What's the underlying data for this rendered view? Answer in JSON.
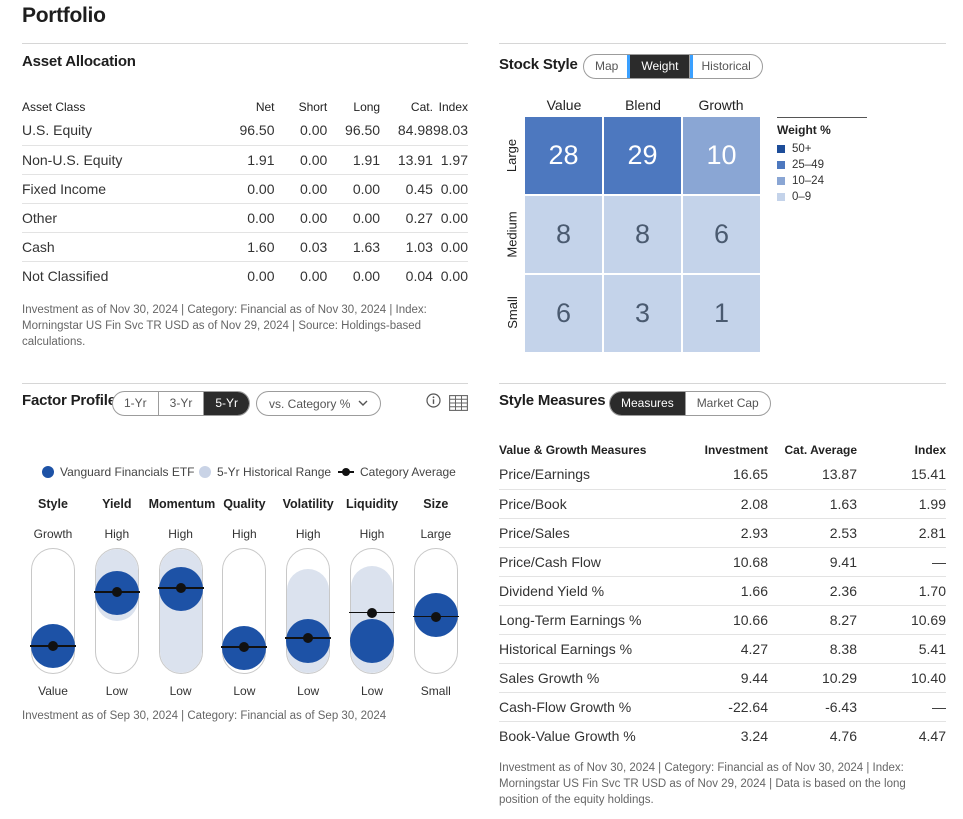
{
  "page": {
    "title": "Portfolio"
  },
  "asset_allocation": {
    "title": "Asset Allocation",
    "columns": [
      "Asset Class",
      "Net",
      "Short",
      "Long",
      "Cat.",
      "Index"
    ],
    "rows": [
      [
        "U.S. Equity",
        "96.50",
        "0.00",
        "96.50",
        "84.98",
        "98.03"
      ],
      [
        "Non-U.S. Equity",
        "1.91",
        "0.00",
        "1.91",
        "13.91",
        "1.97"
      ],
      [
        "Fixed Income",
        "0.00",
        "0.00",
        "0.00",
        "0.45",
        "0.00"
      ],
      [
        "Other",
        "0.00",
        "0.00",
        "0.00",
        "0.27",
        "0.00"
      ],
      [
        "Cash",
        "1.60",
        "0.03",
        "1.63",
        "1.03",
        "0.00"
      ],
      [
        "Not Classified",
        "0.00",
        "0.00",
        "0.00",
        "0.04",
        "0.00"
      ]
    ],
    "footnote": "Investment as of Nov 30, 2024 | Category: Financial as of Nov 30, 2024 | Index: Morningstar US Fin Svc TR USD as of Nov 29, 2024 | Source: Holdings-based calculations."
  },
  "stock_style": {
    "title": "Stock Style",
    "tabs": [
      "Map",
      "Weight",
      "Historical"
    ],
    "active_tab": "Weight",
    "columns": [
      "Value",
      "Blend",
      "Growth"
    ],
    "rows": [
      "Large",
      "Medium",
      "Small"
    ],
    "grid": [
      [
        "28",
        "29",
        "10"
      ],
      [
        "8",
        "8",
        "6"
      ],
      [
        "6",
        "3",
        "1"
      ]
    ],
    "legend_title": "Weight %",
    "legend": [
      {
        "label": "50+",
        "color": "#1d4d99"
      },
      {
        "label": "25–49",
        "color": "#4d78bf"
      },
      {
        "label": "10–24",
        "color": "#8aa6d4"
      },
      {
        "label": "0–9",
        "color": "#c4d3ea"
      }
    ]
  },
  "factor_profile": {
    "title": "Factor Profile",
    "periods": [
      "1-Yr",
      "3-Yr",
      "5-Yr"
    ],
    "active_period": "5-Yr",
    "dropdown_label": "vs. Category %",
    "icons": [
      "info-icon",
      "table-icon"
    ],
    "legend": {
      "fund": "Vanguard Financials ETF",
      "range": "5-Yr Historical Range",
      "average": "Category Average"
    },
    "colors": {
      "fund": "#1d52a6",
      "range": "#dbe2ee",
      "average": "#111111"
    },
    "factors": [
      {
        "name": "Style",
        "high": "Growth",
        "low": "Value",
        "fund": 0.07,
        "avg": 0.07,
        "range": [
          0.0,
          0.0
        ]
      },
      {
        "name": "Yield",
        "high": "High",
        "low": "Low",
        "fund": 0.72,
        "avg": 0.73,
        "range": [
          0.42,
          1.0
        ]
      },
      {
        "name": "Momentum",
        "high": "High",
        "low": "Low",
        "fund": 0.77,
        "avg": 0.78,
        "range": [
          0.0,
          1.0
        ]
      },
      {
        "name": "Quality",
        "high": "High",
        "low": "Low",
        "fund": 0.05,
        "avg": 0.06,
        "range": [
          0.0,
          0.0
        ]
      },
      {
        "name": "Volatility",
        "high": "High",
        "low": "Low",
        "fund": 0.13,
        "avg": 0.17,
        "range": [
          0.0,
          0.84
        ]
      },
      {
        "name": "Liquidity",
        "high": "High",
        "low": "Low",
        "fund": 0.14,
        "avg": 0.48,
        "range": [
          0.0,
          0.86
        ]
      },
      {
        "name": "Size",
        "high": "Large",
        "low": "Small",
        "fund": 0.45,
        "avg": 0.43,
        "range": [
          0.0,
          0.0
        ]
      }
    ],
    "footnote": "Investment as of Sep 30, 2024 | Category: Financial as of Sep 30, 2024"
  },
  "style_measures": {
    "title": "Style Measures",
    "tabs": [
      "Measures",
      "Market Cap"
    ],
    "active_tab": "Measures",
    "columns": [
      "Value & Growth Measures",
      "Investment",
      "Cat. Average",
      "Index"
    ],
    "rows": [
      [
        "Price/Earnings",
        "16.65",
        "13.87",
        "15.41"
      ],
      [
        "Price/Book",
        "2.08",
        "1.63",
        "1.99"
      ],
      [
        "Price/Sales",
        "2.93",
        "2.53",
        "2.81"
      ],
      [
        "Price/Cash Flow",
        "10.68",
        "9.41",
        "—"
      ],
      [
        "Dividend Yield %",
        "1.66",
        "2.36",
        "1.70"
      ],
      [
        "Long-Term Earnings %",
        "10.66",
        "8.27",
        "10.69"
      ],
      [
        "Historical Earnings %",
        "4.27",
        "8.38",
        "5.41"
      ],
      [
        "Sales Growth %",
        "9.44",
        "10.29",
        "10.40"
      ],
      [
        "Cash-Flow Growth %",
        "-22.64",
        "-6.43",
        "—"
      ],
      [
        "Book-Value Growth %",
        "3.24",
        "4.76",
        "4.47"
      ]
    ],
    "footnote": "Investment as of Nov 30, 2024 | Category: Financial as of Nov 30, 2024 | Index: Morningstar US Fin Svc TR USD as of Nov 29, 2024 | Data is based on the long position of the equity holdings."
  }
}
